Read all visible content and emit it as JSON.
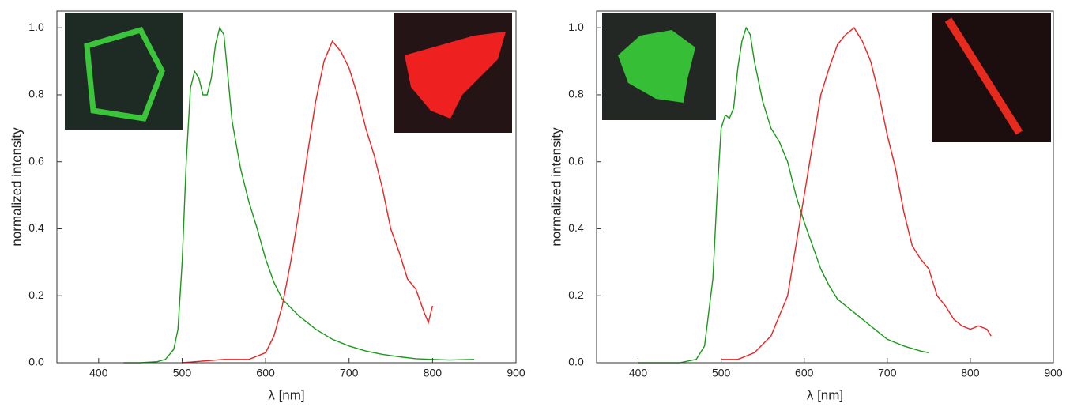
{
  "chart_data": [
    {
      "type": "line",
      "xlabel": "λ [nm]",
      "ylabel": "normalized intensity",
      "xlim": [
        350,
        900
      ],
      "ylim": [
        0,
        1.05
      ],
      "xticks": [
        400,
        500,
        600,
        700,
        800,
        900
      ],
      "yticks": [
        {
          "value": 0,
          "label": "0.0"
        },
        0.2,
        0.4,
        0.6,
        0.8,
        {
          "value": 1,
          "label": "1.0"
        }
      ],
      "series": [
        {
          "color": "#1a9a1a",
          "x": [
            430,
            450,
            470,
            480,
            490,
            495,
            500,
            505,
            510,
            515,
            520,
            525,
            530,
            535,
            540,
            545,
            550,
            555,
            560,
            570,
            580,
            590,
            600,
            610,
            620,
            640,
            660,
            680,
            700,
            720,
            740,
            760,
            780,
            800,
            820,
            850
          ],
          "values": [
            0,
            0,
            0.003,
            0.01,
            0.04,
            0.1,
            0.3,
            0.6,
            0.82,
            0.87,
            0.85,
            0.8,
            0.8,
            0.85,
            0.95,
            1.0,
            0.98,
            0.85,
            0.72,
            0.58,
            0.48,
            0.4,
            0.31,
            0.24,
            0.19,
            0.14,
            0.1,
            0.07,
            0.05,
            0.035,
            0.025,
            0.018,
            0.012,
            0.01,
            0.008,
            0.01
          ]
        },
        {
          "color": "#ee2222",
          "x": [
            500,
            550,
            580,
            600,
            610,
            620,
            630,
            640,
            650,
            660,
            670,
            680,
            690,
            700,
            710,
            720,
            730,
            740,
            750,
            760,
            770,
            780,
            790,
            795,
            800
          ],
          "values": [
            0,
            0.01,
            0.01,
            0.03,
            0.08,
            0.17,
            0.3,
            0.45,
            0.62,
            0.78,
            0.9,
            0.96,
            0.93,
            0.88,
            0.8,
            0.7,
            0.62,
            0.52,
            0.4,
            0.33,
            0.25,
            0.22,
            0.15,
            0.12,
            0.17
          ]
        }
      ]
    },
    {
      "type": "line",
      "xlabel": "λ [nm]",
      "ylabel": "normalized intensity",
      "xlim": [
        350,
        900
      ],
      "ylim": [
        0,
        1.05
      ],
      "xticks": [
        400,
        500,
        600,
        700,
        800,
        900
      ],
      "yticks": [
        {
          "value": 0,
          "label": "0.0"
        },
        0.2,
        0.4,
        0.6,
        0.8,
        {
          "value": 1,
          "label": "1.0"
        }
      ],
      "series": [
        {
          "color": "#1a9a1a",
          "x": [
            400,
            450,
            470,
            480,
            490,
            495,
            500,
            505,
            510,
            515,
            520,
            525,
            530,
            535,
            540,
            550,
            560,
            570,
            580,
            590,
            600,
            610,
            620,
            630,
            640,
            660,
            680,
            700,
            720,
            740,
            750
          ],
          "values": [
            0,
            0,
            0.01,
            0.05,
            0.25,
            0.5,
            0.7,
            0.74,
            0.73,
            0.76,
            0.88,
            0.96,
            1.0,
            0.98,
            0.9,
            0.78,
            0.7,
            0.66,
            0.6,
            0.5,
            0.42,
            0.35,
            0.28,
            0.23,
            0.19,
            0.15,
            0.11,
            0.07,
            0.05,
            0.035,
            0.03
          ]
        },
        {
          "color": "#ee2222",
          "x": [
            500,
            520,
            540,
            560,
            580,
            590,
            600,
            610,
            620,
            630,
            640,
            650,
            660,
            670,
            680,
            690,
            700,
            710,
            720,
            730,
            740,
            750,
            760,
            770,
            780,
            790,
            800,
            810,
            820,
            825
          ],
          "values": [
            0.01,
            0.01,
            0.03,
            0.08,
            0.2,
            0.35,
            0.5,
            0.65,
            0.8,
            0.88,
            0.95,
            0.98,
            1.0,
            0.96,
            0.9,
            0.8,
            0.68,
            0.58,
            0.45,
            0.35,
            0.31,
            0.28,
            0.2,
            0.17,
            0.13,
            0.11,
            0.1,
            0.11,
            0.1,
            0.08
          ]
        }
      ]
    }
  ]
}
